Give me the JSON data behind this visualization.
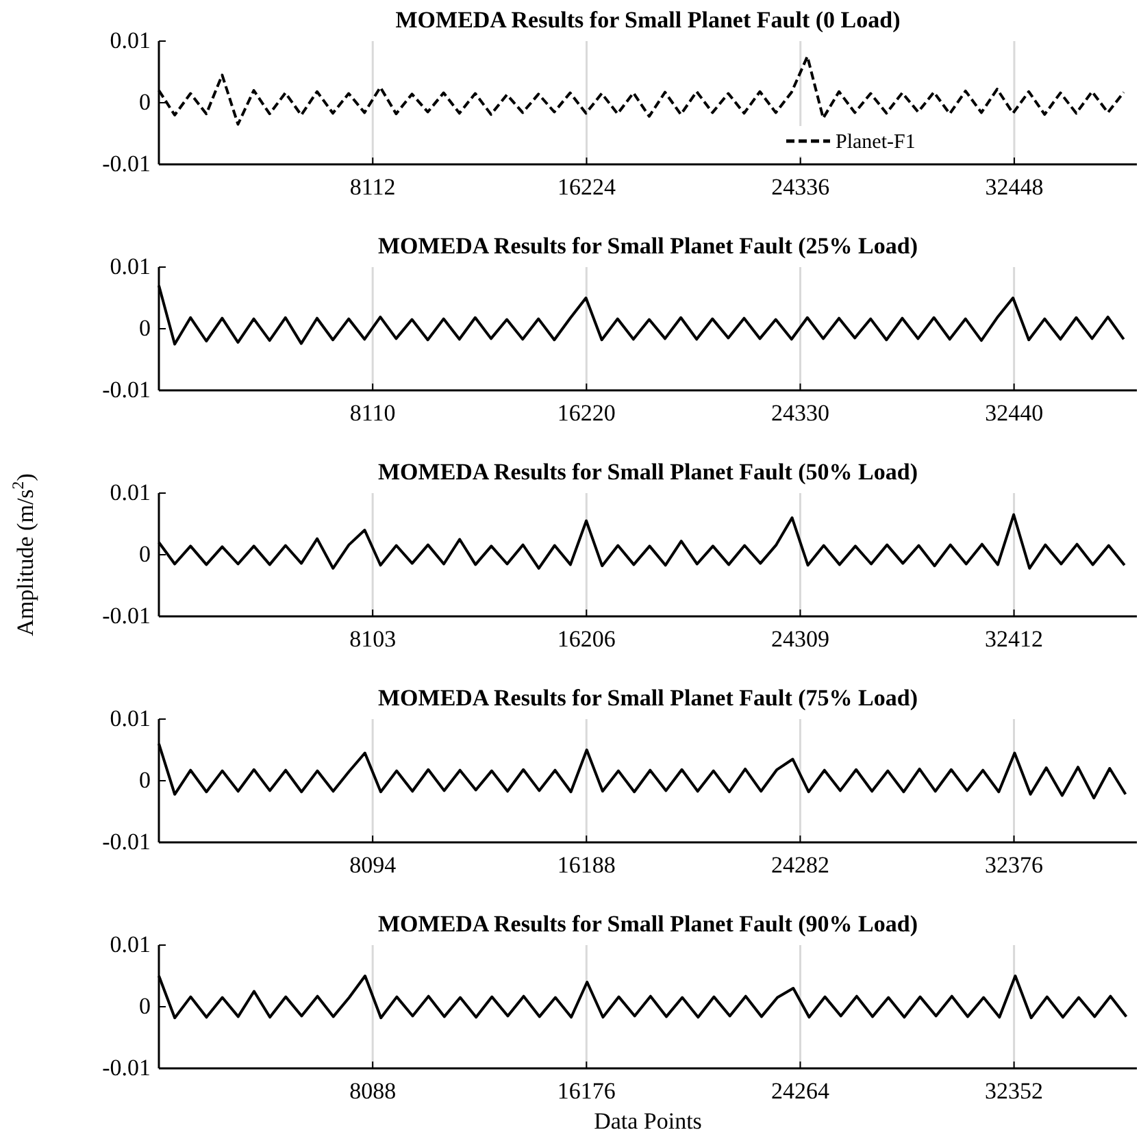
{
  "chart_data": [
    {
      "type": "line",
      "title": "MOMEDA Results for Small Planet Fault (0 Load)",
      "xlim": [
        0,
        37100
      ],
      "xticks": [
        8112,
        16224,
        24336,
        32448
      ],
      "ylim": [
        -0.01,
        0.01
      ],
      "yticks": [
        -0.01,
        0,
        0.01
      ],
      "grid": "x",
      "legend": "bottom right",
      "line_style": "dashed",
      "x": [
        0,
        600,
        1200,
        1800,
        2400,
        3000,
        3600,
        4200,
        4800,
        5400,
        6000,
        6600,
        7200,
        7800,
        8400,
        9000,
        9600,
        10200,
        10800,
        11400,
        12000,
        12600,
        13200,
        13800,
        14400,
        15000,
        15600,
        16200,
        16800,
        17400,
        18000,
        18600,
        19200,
        19800,
        20400,
        21000,
        21600,
        22200,
        22800,
        23400,
        24000,
        24600,
        25200,
        25800,
        26400,
        27000,
        27600,
        28200,
        28800,
        29400,
        30000,
        30600,
        31200,
        31800,
        32400,
        33000,
        33600,
        34200,
        34800,
        35400,
        36000,
        36600
      ],
      "series": [
        {
          "name": "Planet-F1",
          "color": "#000000",
          "values": [
            0.002,
            -0.002,
            0.0015,
            -0.0018,
            0.0045,
            -0.0035,
            0.002,
            -0.0018,
            0.0016,
            -0.002,
            0.0018,
            -0.0017,
            0.0015,
            -0.0016,
            0.0025,
            -0.0018,
            0.0014,
            -0.0015,
            0.0016,
            -0.0017,
            0.0015,
            -0.0019,
            0.0013,
            -0.0016,
            0.0014,
            -0.0015,
            0.0016,
            -0.0017,
            0.0015,
            -0.0018,
            0.0016,
            -0.0022,
            0.0017,
            -0.0019,
            0.0018,
            -0.0016,
            0.0015,
            -0.0017,
            0.0018,
            -0.0016,
            0.0017,
            0.0075,
            -0.0025,
            0.0018,
            -0.0016,
            0.0015,
            -0.0017,
            0.0016,
            -0.0015,
            0.0017,
            -0.0018,
            0.0019,
            -0.0016,
            0.0022,
            -0.0017,
            0.0018,
            -0.0019,
            0.0016,
            -0.0017,
            0.0018,
            -0.0016,
            0.0017
          ]
        }
      ]
    },
    {
      "type": "line",
      "title": "MOMEDA Results for Small Planet Fault (25% Load)",
      "xlim": [
        0,
        37100
      ],
      "xticks": [
        8110,
        16220,
        24330,
        32440
      ],
      "ylim": [
        -0.01,
        0.01
      ],
      "yticks": [
        -0.01,
        0,
        0.01
      ],
      "grid": "x",
      "x": [
        0,
        600,
        1200,
        1800,
        2400,
        3000,
        3600,
        4200,
        4800,
        5400,
        6000,
        6600,
        7200,
        7800,
        8400,
        9000,
        9600,
        10200,
        10800,
        11400,
        12000,
        12600,
        13200,
        13800,
        14400,
        15000,
        15600,
        16200,
        16800,
        17400,
        18000,
        18600,
        19200,
        19800,
        20400,
        21000,
        21600,
        22200,
        22800,
        23400,
        24000,
        24600,
        25200,
        25800,
        26400,
        27000,
        27600,
        28200,
        28800,
        29400,
        30000,
        30600,
        31200,
        31800,
        32400,
        33000,
        33600,
        34200,
        34800,
        35400,
        36000,
        36600
      ],
      "series": [
        {
          "color": "#000000",
          "values": [
            0.007,
            -0.0025,
            0.0018,
            -0.002,
            0.0017,
            -0.0022,
            0.0016,
            -0.0019,
            0.0018,
            -0.0024,
            0.0017,
            -0.0018,
            0.0016,
            -0.0017,
            0.0019,
            -0.0016,
            0.0015,
            -0.0018,
            0.0016,
            -0.0017,
            0.0018,
            -0.0016,
            0.0015,
            -0.0017,
            0.0016,
            -0.0018,
            0.0017,
            0.005,
            -0.0018,
            0.0016,
            -0.0017,
            0.0015,
            -0.0016,
            0.0018,
            -0.0017,
            0.0016,
            -0.0015,
            0.0017,
            -0.0016,
            0.0015,
            -0.0017,
            0.0018,
            -0.0016,
            0.0017,
            -0.0015,
            0.0016,
            -0.0018,
            0.0017,
            -0.0016,
            0.0018,
            -0.0017,
            0.0016,
            -0.0019,
            0.0018,
            0.005,
            -0.0018,
            0.0016,
            -0.0017,
            0.0018,
            -0.0016,
            0.0019,
            -0.0017
          ]
        }
      ]
    },
    {
      "type": "line",
      "title": "MOMEDA Results for Small Planet Fault (50% Load)",
      "ylabel": "Amplitude (m/s$^{2}$)",
      "xlim": [
        0,
        37070
      ],
      "xticks": [
        8103,
        16206,
        24309,
        32412
      ],
      "ylim": [
        -0.01,
        0.01
      ],
      "yticks": [
        -0.01,
        0,
        0.01
      ],
      "grid": "x",
      "x": [
        0,
        600,
        1200,
        1800,
        2400,
        3000,
        3600,
        4200,
        4800,
        5400,
        6000,
        6600,
        7200,
        7800,
        8400,
        9000,
        9600,
        10200,
        10800,
        11400,
        12000,
        12600,
        13200,
        13800,
        14400,
        15000,
        15600,
        16200,
        16800,
        17400,
        18000,
        18600,
        19200,
        19800,
        20400,
        21000,
        21600,
        22200,
        22800,
        23400,
        24000,
        24600,
        25200,
        25800,
        26400,
        27000,
        27600,
        28200,
        28800,
        29400,
        30000,
        30600,
        31200,
        31800,
        32400,
        33000,
        33600,
        34200,
        34800,
        35400,
        36000,
        36600
      ],
      "series": [
        {
          "color": "#000000",
          "values": [
            0.002,
            -0.0015,
            0.0014,
            -0.0016,
            0.0013,
            -0.0015,
            0.0014,
            -0.0016,
            0.0015,
            -0.0014,
            0.0026,
            -0.0022,
            0.0016,
            0.004,
            -0.0017,
            0.0015,
            -0.0014,
            0.0016,
            -0.0015,
            0.0025,
            -0.0016,
            0.0014,
            -0.0015,
            0.0016,
            -0.0022,
            0.0015,
            -0.0016,
            0.0055,
            -0.0018,
            0.0015,
            -0.0016,
            0.0014,
            -0.0017,
            0.0022,
            -0.0015,
            0.0014,
            -0.0016,
            0.0015,
            -0.0014,
            0.0016,
            0.006,
            -0.0017,
            0.0015,
            -0.0016,
            0.0014,
            -0.0015,
            0.0016,
            -0.0014,
            0.0015,
            -0.0018,
            0.0016,
            -0.0015,
            0.0017,
            -0.0016,
            0.0065,
            -0.0022,
            0.0016,
            -0.0015,
            0.0017,
            -0.0016,
            0.0015,
            -0.0017
          ]
        }
      ]
    },
    {
      "type": "line",
      "title": "MOMEDA Results for Small Planet Fault (75% Load)",
      "xlim": [
        0,
        37030
      ],
      "xticks": [
        8094,
        16188,
        24282,
        32376
      ],
      "ylim": [
        -0.01,
        0.01
      ],
      "yticks": [
        -0.01,
        0,
        0.01
      ],
      "grid": "x",
      "x": [
        0,
        600,
        1200,
        1800,
        2400,
        3000,
        3600,
        4200,
        4800,
        5400,
        6000,
        6600,
        7200,
        7800,
        8400,
        9000,
        9600,
        10200,
        10800,
        11400,
        12000,
        12600,
        13200,
        13800,
        14400,
        15000,
        15600,
        16200,
        16800,
        17400,
        18000,
        18600,
        19200,
        19800,
        20400,
        21000,
        21600,
        22200,
        22800,
        23400,
        24000,
        24600,
        25200,
        25800,
        26400,
        27000,
        27600,
        28200,
        28800,
        29400,
        30000,
        30600,
        31200,
        31800,
        32400,
        33000,
        33600,
        34200,
        34800,
        35400,
        36000,
        36600
      ],
      "series": [
        {
          "color": "#000000",
          "values": [
            0.006,
            -0.0022,
            0.0017,
            -0.0018,
            0.0016,
            -0.0017,
            0.0018,
            -0.0016,
            0.0017,
            -0.0018,
            0.0016,
            -0.0017,
            0.0015,
            0.0045,
            -0.0018,
            0.0016,
            -0.0017,
            0.0018,
            -0.0016,
            0.0017,
            -0.0015,
            0.0016,
            -0.0017,
            0.0018,
            -0.0016,
            0.0017,
            -0.0018,
            0.005,
            -0.0017,
            0.0016,
            -0.0018,
            0.0017,
            -0.0016,
            0.0018,
            -0.0017,
            0.0016,
            -0.0018,
            0.0019,
            -0.0017,
            0.0018,
            0.0035,
            -0.0018,
            0.0017,
            -0.0016,
            0.0018,
            -0.0017,
            0.0016,
            -0.0018,
            0.0019,
            -0.0017,
            0.0018,
            -0.0016,
            0.0017,
            -0.0018,
            0.0045,
            -0.0022,
            0.0021,
            -0.0024,
            0.0022,
            -0.0028,
            0.002,
            -0.0022
          ]
        }
      ]
    },
    {
      "type": "line",
      "title": "MOMEDA Results for Small Planet Fault (90% Load)",
      "xlabel": "Data Points",
      "xlim": [
        0,
        37000
      ],
      "xticks": [
        8088,
        16176,
        24264,
        32352
      ],
      "ylim": [
        -0.01,
        0.01
      ],
      "yticks": [
        -0.01,
        0,
        0.01
      ],
      "grid": "x",
      "x": [
        0,
        600,
        1200,
        1800,
        2400,
        3000,
        3600,
        4200,
        4800,
        5400,
        6000,
        6600,
        7200,
        7800,
        8400,
        9000,
        9600,
        10200,
        10800,
        11400,
        12000,
        12600,
        13200,
        13800,
        14400,
        15000,
        15600,
        16200,
        16800,
        17400,
        18000,
        18600,
        19200,
        19800,
        20400,
        21000,
        21600,
        22200,
        22800,
        23400,
        24000,
        24600,
        25200,
        25800,
        26400,
        27000,
        27600,
        28200,
        28800,
        29400,
        30000,
        30600,
        31200,
        31800,
        32400,
        33000,
        33600,
        34200,
        34800,
        35400,
        36000,
        36600
      ],
      "series": [
        {
          "color": "#000000",
          "values": [
            0.005,
            -0.0018,
            0.0016,
            -0.0017,
            0.0015,
            -0.0016,
            0.0025,
            -0.0017,
            0.0016,
            -0.0015,
            0.0017,
            -0.0016,
            0.0015,
            0.005,
            -0.0018,
            0.0016,
            -0.0015,
            0.0017,
            -0.0016,
            0.0015,
            -0.0017,
            0.0016,
            -0.0015,
            0.0017,
            -0.0016,
            0.0015,
            -0.0017,
            0.004,
            -0.0017,
            0.0016,
            -0.0015,
            0.0017,
            -0.0016,
            0.0015,
            -0.0017,
            0.0016,
            -0.0015,
            0.0017,
            -0.0016,
            0.0015,
            0.003,
            -0.0017,
            0.0016,
            -0.0015,
            0.0017,
            -0.0016,
            0.0015,
            -0.0017,
            0.0016,
            -0.0015,
            0.0017,
            -0.0016,
            0.0015,
            -0.0017,
            0.005,
            -0.0018,
            0.0016,
            -0.0017,
            0.0015,
            -0.0016,
            0.0017,
            -0.0016
          ]
        }
      ]
    }
  ]
}
